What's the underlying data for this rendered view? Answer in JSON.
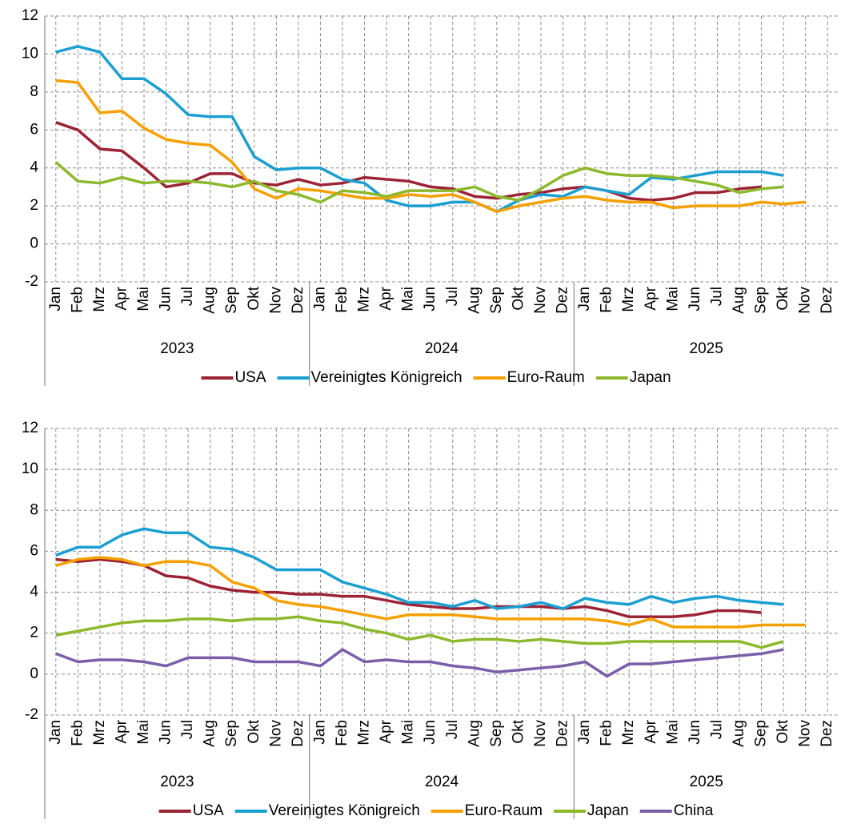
{
  "chart_data": [
    {
      "type": "line",
      "categories": [
        "Jan",
        "Feb",
        "Mrz",
        "Apr",
        "Mai",
        "Jun",
        "Jul",
        "Aug",
        "Sep",
        "Okt",
        "Nov",
        "Dez",
        "Jan",
        "Feb",
        "Mrz",
        "Apr",
        "Mai",
        "Jun",
        "Jul",
        "Aug",
        "Sep",
        "Okt",
        "Nov",
        "Dez",
        "Jan",
        "Feb",
        "Mrz",
        "Apr",
        "Mai",
        "Jun",
        "Jul",
        "Aug",
        "Sep",
        "Okt",
        "Nov",
        "Dez"
      ],
      "year_labels": [
        "2023",
        "2024",
        "2025"
      ],
      "ylim": [
        -2,
        12
      ],
      "yticks": [
        -2,
        0,
        2,
        4,
        6,
        8,
        10,
        12
      ],
      "grid": true,
      "legend": "bottom",
      "series": [
        {
          "name": "USA",
          "color": "#9b2335",
          "values": [
            6.4,
            6.0,
            5.0,
            4.9,
            4.0,
            3.0,
            3.2,
            3.7,
            3.7,
            3.2,
            3.1,
            3.4,
            3.1,
            3.2,
            3.5,
            3.4,
            3.3,
            3.0,
            2.9,
            2.5,
            2.4,
            2.6,
            2.7,
            2.9,
            3.0,
            2.8,
            2.4,
            2.3,
            2.4,
            2.7,
            2.7,
            2.9,
            3.0,
            null,
            null,
            null
          ]
        },
        {
          "name": "Vereinigtes Königreich",
          "color": "#1b9fd0",
          "values": [
            10.1,
            10.4,
            10.1,
            8.7,
            8.7,
            7.9,
            6.8,
            6.7,
            6.7,
            4.6,
            3.9,
            4.0,
            4.0,
            3.4,
            3.2,
            2.3,
            2.0,
            2.0,
            2.2,
            2.2,
            1.7,
            2.3,
            2.6,
            2.5,
            3.0,
            2.8,
            2.6,
            3.5,
            3.4,
            3.6,
            3.8,
            3.8,
            3.8,
            3.6,
            null,
            null
          ]
        },
        {
          "name": "Euro-Raum",
          "color": "#f5a000",
          "values": [
            8.6,
            8.5,
            6.9,
            7.0,
            6.1,
            5.5,
            5.3,
            5.2,
            4.3,
            2.9,
            2.4,
            2.9,
            2.8,
            2.6,
            2.4,
            2.4,
            2.6,
            2.5,
            2.6,
            2.2,
            1.7,
            2.0,
            2.2,
            2.4,
            2.5,
            2.3,
            2.2,
            2.2,
            1.9,
            2.0,
            2.0,
            2.0,
            2.2,
            2.1,
            2.2,
            null
          ]
        },
        {
          "name": "Japan",
          "color": "#8cb82b",
          "values": [
            4.3,
            3.3,
            3.2,
            3.5,
            3.2,
            3.3,
            3.3,
            3.2,
            3.0,
            3.3,
            2.8,
            2.6,
            2.2,
            2.8,
            2.7,
            2.5,
            2.8,
            2.8,
            2.8,
            3.0,
            2.5,
            2.3,
            2.9,
            3.6,
            4.0,
            3.7,
            3.6,
            3.6,
            3.5,
            3.3,
            3.1,
            2.7,
            2.9,
            3.0,
            null,
            null
          ]
        }
      ]
    },
    {
      "type": "line",
      "categories": [
        "Jan",
        "Feb",
        "Mrz",
        "Apr",
        "Mai",
        "Jun",
        "Jul",
        "Aug",
        "Sep",
        "Okt",
        "Nov",
        "Dez",
        "Jan",
        "Feb",
        "Mrz",
        "Apr",
        "Mai",
        "Jun",
        "Jul",
        "Aug",
        "Sep",
        "Okt",
        "Nov",
        "Dez",
        "Jan",
        "Feb",
        "Mrz",
        "Apr",
        "Mai",
        "Jun",
        "Jul",
        "Aug",
        "Sep",
        "Okt",
        "Nov",
        "Dez"
      ],
      "year_labels": [
        "2023",
        "2024",
        "2025"
      ],
      "ylim": [
        -2,
        12
      ],
      "yticks": [
        -2,
        0,
        2,
        4,
        6,
        8,
        10,
        12
      ],
      "grid": true,
      "legend": "bottom",
      "series": [
        {
          "name": "USA",
          "color": "#9b2335",
          "values": [
            5.6,
            5.5,
            5.6,
            5.5,
            5.3,
            4.8,
            4.7,
            4.3,
            4.1,
            4.0,
            4.0,
            3.9,
            3.9,
            3.8,
            3.8,
            3.6,
            3.4,
            3.3,
            3.2,
            3.2,
            3.3,
            3.3,
            3.3,
            3.2,
            3.3,
            3.1,
            2.8,
            2.8,
            2.8,
            2.9,
            3.1,
            3.1,
            3.0,
            null,
            null,
            null
          ]
        },
        {
          "name": "Vereinigtes Königreich",
          "color": "#1b9fd0",
          "values": [
            5.8,
            6.2,
            6.2,
            6.8,
            7.1,
            6.9,
            6.9,
            6.2,
            6.1,
            5.7,
            5.1,
            5.1,
            5.1,
            4.5,
            4.2,
            3.9,
            3.5,
            3.5,
            3.3,
            3.6,
            3.2,
            3.3,
            3.5,
            3.2,
            3.7,
            3.5,
            3.4,
            3.8,
            3.5,
            3.7,
            3.8,
            3.6,
            3.5,
            3.4,
            null,
            null
          ]
        },
        {
          "name": "Euro-Raum",
          "color": "#f5a000",
          "values": [
            5.3,
            5.6,
            5.7,
            5.6,
            5.3,
            5.5,
            5.5,
            5.3,
            4.5,
            4.2,
            3.6,
            3.4,
            3.3,
            3.1,
            2.9,
            2.7,
            2.9,
            2.9,
            2.9,
            2.8,
            2.7,
            2.7,
            2.7,
            2.7,
            2.7,
            2.6,
            2.4,
            2.7,
            2.3,
            2.3,
            2.3,
            2.3,
            2.4,
            2.4,
            2.4,
            null
          ]
        },
        {
          "name": "Japan",
          "color": "#8cb82b",
          "values": [
            1.9,
            2.1,
            2.3,
            2.5,
            2.6,
            2.6,
            2.7,
            2.7,
            2.6,
            2.7,
            2.7,
            2.8,
            2.6,
            2.5,
            2.2,
            2.0,
            1.7,
            1.9,
            1.6,
            1.7,
            1.7,
            1.6,
            1.7,
            1.6,
            1.5,
            1.5,
            1.6,
            1.6,
            1.6,
            1.6,
            1.6,
            1.6,
            1.3,
            1.6,
            null,
            null
          ]
        },
        {
          "name": "China",
          "color": "#7b5ea8",
          "values": [
            1.0,
            0.6,
            0.7,
            0.7,
            0.6,
            0.4,
            0.8,
            0.8,
            0.8,
            0.6,
            0.6,
            0.6,
            0.4,
            1.2,
            0.6,
            0.7,
            0.6,
            0.6,
            0.4,
            0.3,
            0.1,
            0.2,
            0.3,
            0.4,
            0.6,
            -0.1,
            0.5,
            0.5,
            0.6,
            0.7,
            0.8,
            0.9,
            1.0,
            1.2,
            null,
            null
          ]
        }
      ]
    }
  ]
}
